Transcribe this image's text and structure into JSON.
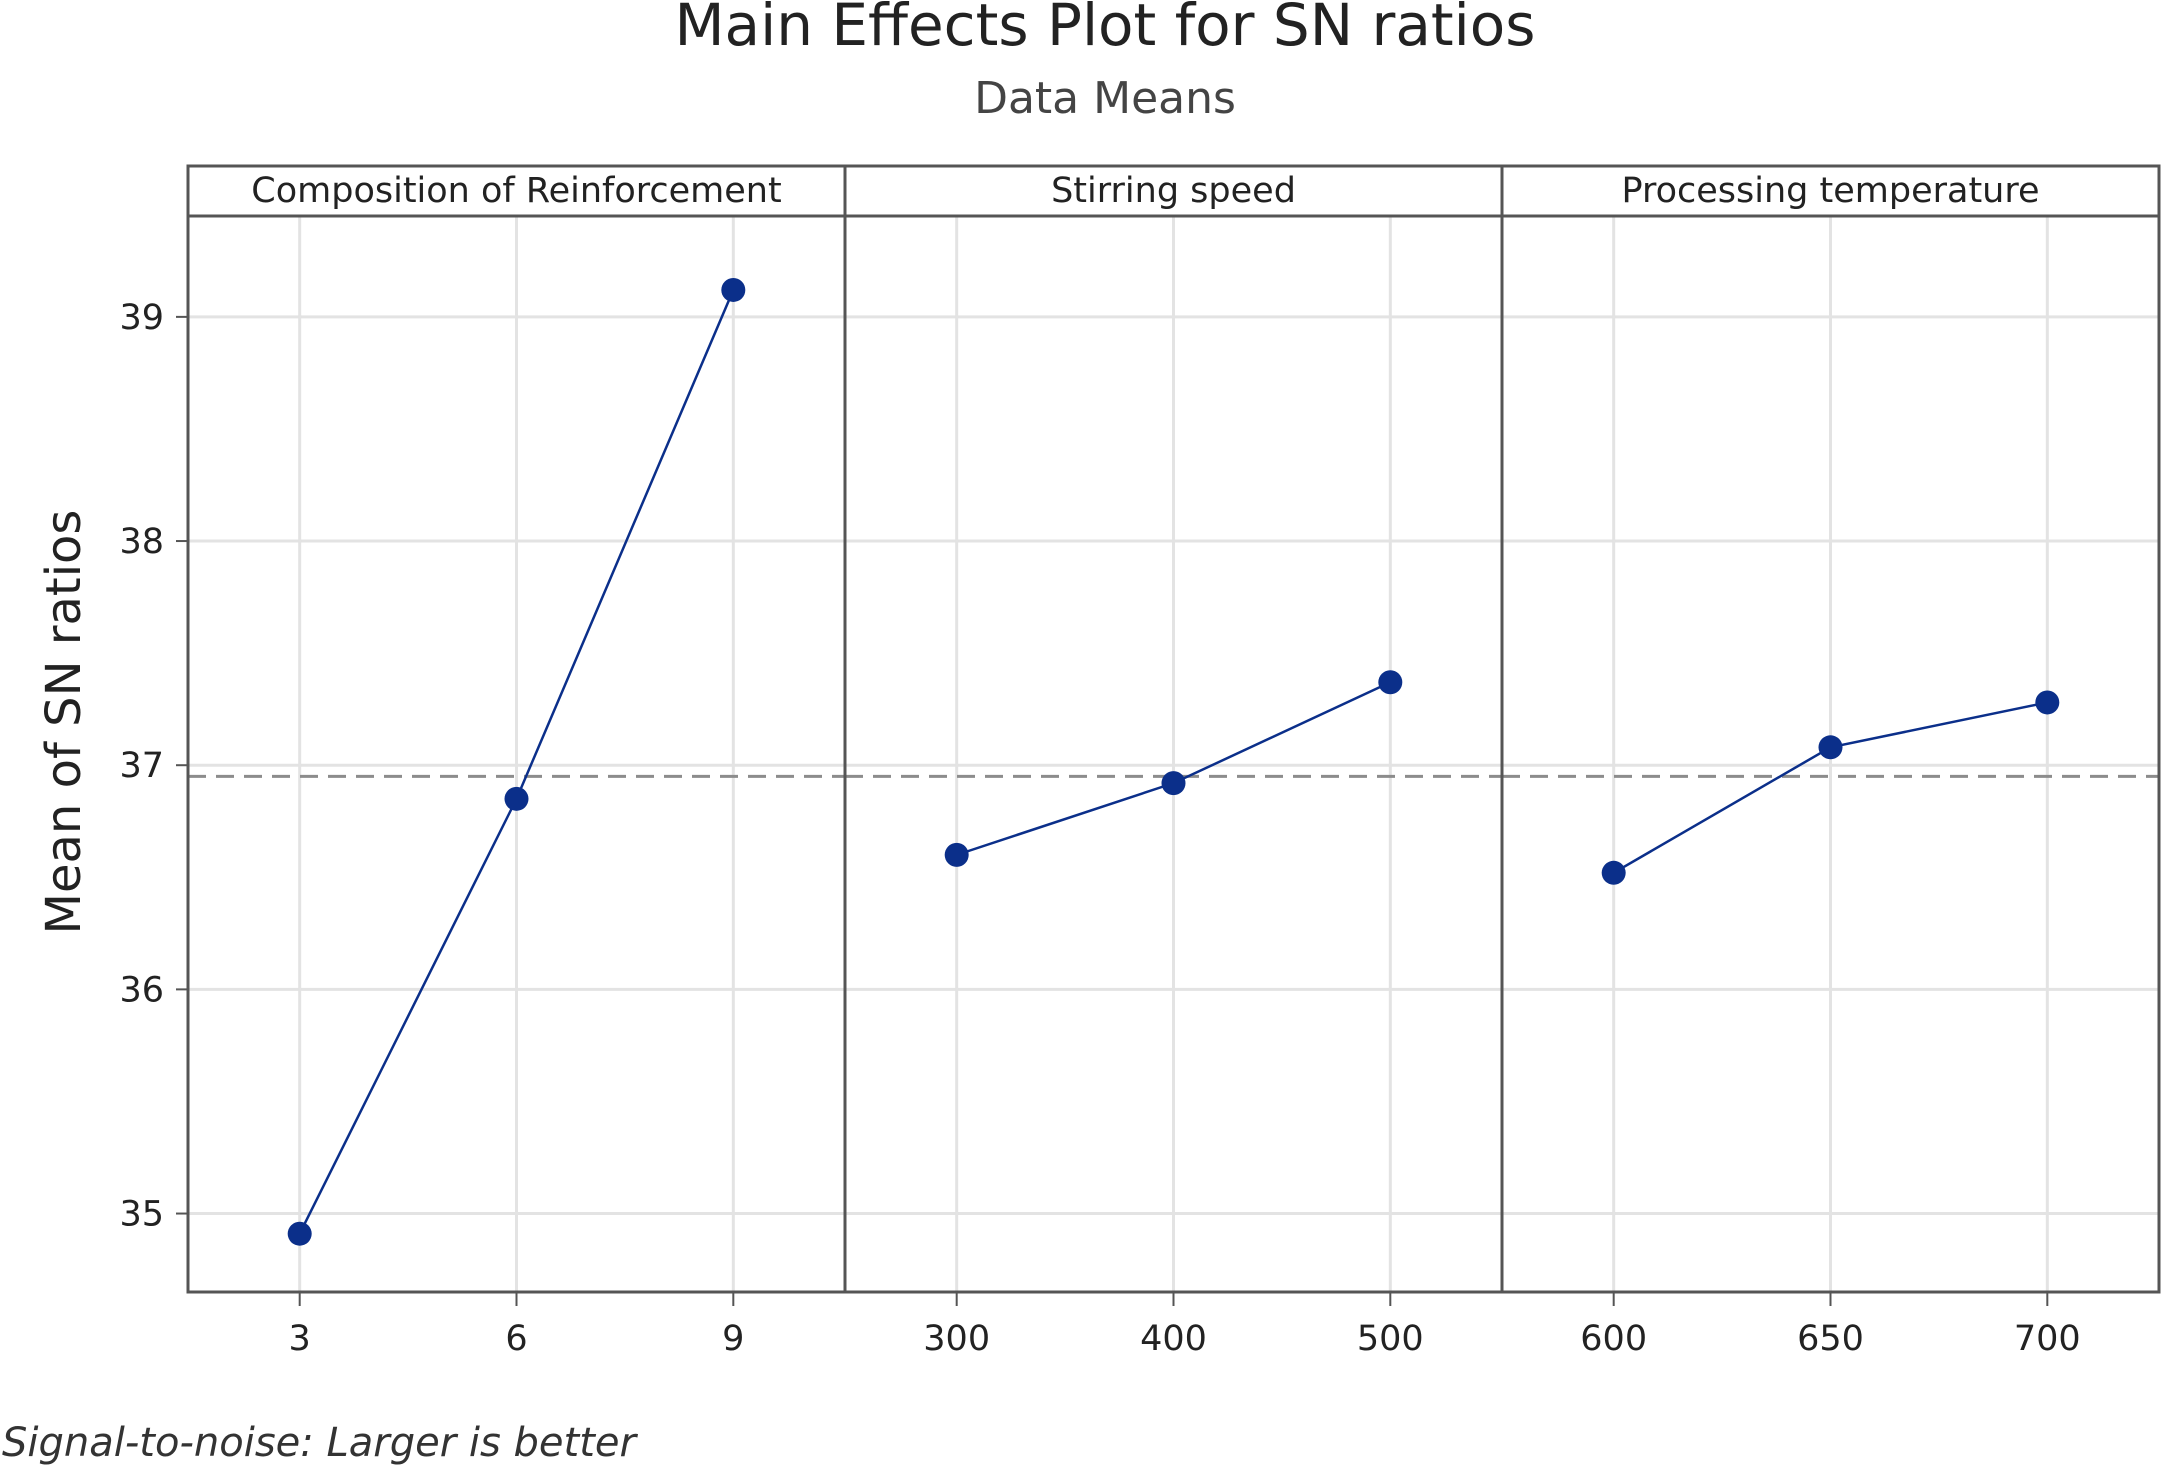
{
  "chart_data": {
    "type": "line",
    "title": "Main Effects Plot for SN ratios",
    "subtitle": "Data Means",
    "ylabel": "Mean of SN ratios",
    "footnote": "Signal-to-noise: Larger is better",
    "ylim": [
      34.65,
      39.45
    ],
    "yticks": [
      35,
      36,
      37,
      38,
      39
    ],
    "yticklabels": [
      "35",
      "36",
      "37",
      "38",
      "39"
    ],
    "reference_line": 36.95,
    "grid": true,
    "colors": {
      "series": "#0b2f8a",
      "reference": "#8c8c8c",
      "grid": "#e3e3e3",
      "frame": "#555555"
    },
    "panels": [
      {
        "name": "Composition of Reinforcement",
        "x": [
          3,
          6,
          9
        ],
        "xticklabels": [
          "3",
          "6",
          "9"
        ],
        "values": [
          34.91,
          36.85,
          39.12
        ]
      },
      {
        "name": "Stirring speed",
        "x": [
          300,
          400,
          500
        ],
        "xticklabels": [
          "300",
          "400",
          "500"
        ],
        "values": [
          36.6,
          36.92,
          37.37
        ]
      },
      {
        "name": "Processing temperature",
        "x": [
          600,
          650,
          700
        ],
        "xticklabels": [
          "600",
          "650",
          "700"
        ],
        "values": [
          36.52,
          37.08,
          37.28
        ]
      }
    ]
  }
}
